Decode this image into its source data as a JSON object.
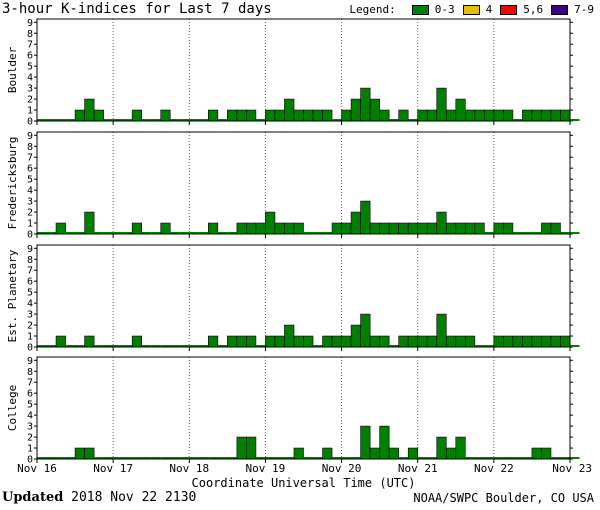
{
  "chart_data": {
    "type": "bar",
    "title": "3-hour K-indices for Last 7 days",
    "xlabel": "Coordinate Universal Time (UTC)",
    "x_tick_labels": [
      "Nov 16",
      "Nov 17",
      "Nov 18",
      "Nov 19",
      "Nov 20",
      "Nov 21",
      "Nov 22",
      "Nov 23"
    ],
    "y_tick_labels": [
      "0",
      "1",
      "2",
      "3",
      "4",
      "5",
      "6",
      "7",
      "8",
      "9"
    ],
    "ylim": [
      0,
      9
    ],
    "bins_per_day": 8,
    "legend": {
      "label": "Legend:",
      "items": [
        {
          "label": "0-3",
          "color": "#008000"
        },
        {
          "label": "4",
          "color": "#e6c000"
        },
        {
          "label": "5,6",
          "color": "#ff0000"
        },
        {
          "label": "7-9",
          "color": "#400080"
        }
      ]
    },
    "panels": [
      {
        "name": "Boulder",
        "values": [
          0,
          0,
          0,
          0,
          1,
          2,
          1,
          0,
          0,
          0,
          1,
          0,
          0,
          1,
          0,
          0,
          0,
          0,
          1,
          0,
          1,
          1,
          1,
          0,
          1,
          1,
          2,
          1,
          1,
          1,
          1,
          0,
          1,
          2,
          3,
          2,
          1,
          0,
          1,
          0,
          1,
          1,
          3,
          1,
          2,
          1,
          1,
          1,
          1,
          1,
          0,
          1,
          1,
          1,
          1,
          1,
          0
        ]
      },
      {
        "name": "Fredericksburg",
        "values": [
          0,
          0,
          1,
          0,
          0,
          2,
          0,
          0,
          0,
          0,
          1,
          0,
          0,
          1,
          0,
          0,
          0,
          0,
          1,
          0,
          0,
          1,
          1,
          1,
          2,
          1,
          1,
          1,
          0,
          0,
          0,
          1,
          1,
          2,
          3,
          1,
          1,
          1,
          1,
          1,
          1,
          1,
          2,
          1,
          1,
          1,
          1,
          0,
          1,
          1,
          0,
          0,
          0,
          1,
          1,
          0,
          0
        ]
      },
      {
        "name": "Est. Planetary",
        "values": [
          0,
          0,
          1,
          0,
          0,
          1,
          0,
          0,
          0,
          0,
          1,
          0,
          0,
          0,
          0,
          0,
          0,
          0,
          1,
          0,
          1,
          1,
          1,
          0,
          1,
          1,
          2,
          1,
          1,
          0,
          1,
          1,
          1,
          2,
          3,
          1,
          1,
          0,
          1,
          1,
          1,
          1,
          3,
          1,
          1,
          1,
          0,
          0,
          1,
          1,
          1,
          1,
          1,
          1,
          1,
          1,
          0
        ]
      },
      {
        "name": "College",
        "values": [
          0,
          0,
          0,
          0,
          1,
          1,
          0,
          0,
          0,
          0,
          0,
          0,
          0,
          0,
          0,
          0,
          0,
          0,
          0,
          0,
          0,
          2,
          2,
          0,
          0,
          0,
          0,
          1,
          0,
          0,
          1,
          0,
          0,
          0,
          3,
          1,
          3,
          1,
          0,
          1,
          0,
          0,
          2,
          1,
          2,
          0,
          0,
          0,
          0,
          0,
          0,
          0,
          1,
          1,
          0,
          0,
          0
        ]
      }
    ]
  },
  "footer": {
    "updated_label": "Updated",
    "updated_value": "2018 Nov 22 2130",
    "credit": "NOAA/SWPC Boulder, CO USA"
  }
}
